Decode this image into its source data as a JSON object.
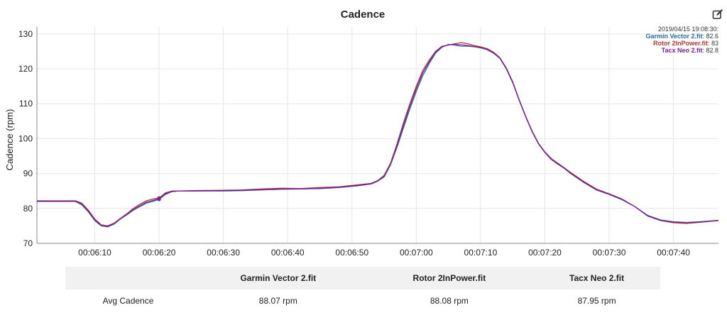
{
  "chart_data": {
    "type": "line",
    "title": "Cadence",
    "ylabel": "Cadence (rpm)",
    "xlabel": "",
    "ylim": [
      70,
      132
    ],
    "xlim": [
      361,
      467
    ],
    "yticks": [
      70,
      80,
      90,
      100,
      110,
      120,
      130
    ],
    "xticks": [
      {
        "t": 370,
        "label": "00:06:10"
      },
      {
        "t": 380,
        "label": "00:06:20"
      },
      {
        "t": 390,
        "label": "00:06:30"
      },
      {
        "t": 400,
        "label": "00:06:40"
      },
      {
        "t": 410,
        "label": "00:06:50"
      },
      {
        "t": 420,
        "label": "00:07:00"
      },
      {
        "t": 430,
        "label": "00:07:10"
      },
      {
        "t": 440,
        "label": "00:07:20"
      },
      {
        "t": 450,
        "label": "00:07:30"
      },
      {
        "t": 460,
        "label": "00:07:40"
      }
    ],
    "grid": true,
    "legend": {
      "position": "top-right",
      "timestamp": "2019/04/15 19:08:30:",
      "items": [
        {
          "name": "Garmin Vector 2.fit",
          "value": "82.6",
          "color": "#2a6d9e"
        },
        {
          "name": "Rotor 2InPower.fit",
          "value": "83",
          "color": "#b5382f"
        },
        {
          "name": "Tacx Neo 2.fit",
          "value": "82.8",
          "color": "#7b1fa2"
        }
      ]
    },
    "highlight_x": 380,
    "series": [
      {
        "name": "Garmin Vector 2.fit",
        "color": "#2a6d9e",
        "x": [
          361,
          367,
          368,
          369,
          370,
          371,
          372,
          373,
          374,
          375,
          376,
          377,
          378,
          379,
          380,
          381,
          382,
          383,
          385,
          390,
          393,
          396,
          399,
          402,
          405,
          408,
          411,
          413,
          414,
          415,
          416,
          417,
          418,
          419,
          420,
          421,
          422,
          423,
          424,
          425,
          426,
          427,
          428,
          429,
          430,
          431,
          432,
          433,
          434,
          435,
          436,
          437,
          438,
          439,
          440,
          441,
          442,
          443,
          444,
          446,
          448,
          450,
          452,
          454,
          456,
          458,
          460,
          462,
          464,
          467
        ],
        "y": [
          82,
          82,
          81,
          79,
          76.5,
          75,
          74.7,
          75.5,
          77,
          78.2,
          79.5,
          80.5,
          81.5,
          82,
          82.6,
          84,
          84.8,
          85,
          85,
          85,
          85.1,
          85.3,
          85.5,
          85.6,
          85.7,
          86,
          86.5,
          87,
          87.8,
          89,
          92.5,
          97.5,
          103,
          108.5,
          113.5,
          118,
          121.5,
          124.5,
          126.2,
          127,
          126.8,
          126.5,
          126.5,
          126.3,
          126,
          125.5,
          124.5,
          123,
          120,
          116,
          111,
          106.3,
          102,
          98.5,
          96,
          94,
          92.7,
          91.5,
          90,
          87.5,
          85.3,
          84,
          82.5,
          80.5,
          78,
          76.7,
          76.2,
          76,
          76.2,
          76.6
        ]
      },
      {
        "name": "Rotor 2InPower.fit",
        "color": "#b5382f",
        "x": [
          361,
          367,
          368,
          369,
          370,
          371,
          372,
          373,
          374,
          375,
          376,
          377,
          378,
          379,
          380,
          381,
          382,
          383,
          385,
          390,
          393,
          396,
          399,
          402,
          405,
          408,
          411,
          413,
          414,
          415,
          416,
          417,
          418,
          419,
          420,
          421,
          422,
          423,
          424,
          425,
          426,
          427,
          428,
          429,
          430,
          431,
          432,
          433,
          434,
          435,
          436,
          437,
          438,
          439,
          440,
          441,
          442,
          443,
          444,
          446,
          448,
          450,
          452,
          454,
          456,
          458,
          460,
          462,
          464,
          467
        ],
        "y": [
          82.2,
          82.2,
          81.5,
          79.5,
          77,
          75.3,
          75,
          75.8,
          77.2,
          78.5,
          80,
          81.2,
          82.2,
          82.7,
          83,
          84.5,
          85,
          85,
          85.1,
          85.2,
          85.3,
          85.6,
          85.8,
          85.7,
          86,
          86.2,
          86.8,
          87.2,
          88,
          89.5,
          93,
          98.5,
          104.5,
          110,
          115,
          119.5,
          122.5,
          125,
          126.5,
          126.8,
          127.2,
          127.5,
          127.2,
          126.7,
          126.3,
          125.8,
          124.8,
          123.2,
          120.3,
          116.3,
          111.2,
          106.5,
          102.2,
          98.7,
          96.2,
          94.3,
          93,
          91.7,
          90.3,
          87.8,
          85.6,
          84.2,
          82.7,
          80.5,
          77.8,
          76.5,
          75.9,
          75.7,
          76,
          76.5
        ]
      },
      {
        "name": "Tacx Neo 2.fit",
        "color": "#7b1fa2",
        "x": [
          361,
          367,
          368,
          369,
          370,
          371,
          372,
          373,
          374,
          375,
          376,
          377,
          378,
          379,
          380,
          381,
          382,
          383,
          385,
          390,
          393,
          396,
          399,
          402,
          405,
          408,
          411,
          413,
          414,
          415,
          416,
          417,
          418,
          419,
          420,
          421,
          422,
          423,
          424,
          425,
          426,
          427,
          428,
          429,
          430,
          431,
          432,
          433,
          434,
          435,
          436,
          437,
          438,
          439,
          440,
          441,
          442,
          443,
          444,
          446,
          448,
          450,
          452,
          454,
          456,
          458,
          460,
          462,
          464,
          467
        ],
        "y": [
          82.1,
          82.1,
          81.2,
          79.2,
          76.7,
          75.1,
          74.9,
          75.6,
          77.1,
          78.3,
          79.7,
          80.8,
          81.8,
          82.3,
          82.8,
          84.2,
          84.9,
          85,
          85,
          85.1,
          85.2,
          85.4,
          85.6,
          85.6,
          85.8,
          86.1,
          86.6,
          87.1,
          87.9,
          89.2,
          92.7,
          98,
          103.8,
          109.3,
          114.3,
          118.8,
          122,
          124.8,
          126.3,
          126.9,
          127,
          126.9,
          126.7,
          126.4,
          126.1,
          125.6,
          124.6,
          123.1,
          120.1,
          116.1,
          111.1,
          106.4,
          102.1,
          98.6,
          96.1,
          94.1,
          92.8,
          91.6,
          90.1,
          87.6,
          85.4,
          84.1,
          82.6,
          80.5,
          77.9,
          76.6,
          76.1,
          75.9,
          76.1,
          76.6
        ]
      }
    ]
  },
  "stats_table": {
    "headers": [
      "",
      "Garmin Vector 2.fit",
      "Rotor 2InPower.fit",
      "Tacx Neo 2.fit"
    ],
    "rows": [
      {
        "label": "Avg Cadence",
        "values": [
          "88.07 rpm",
          "88.08 rpm",
          "87.95 rpm"
        ]
      }
    ]
  },
  "icons": {
    "edit": "edit-icon"
  }
}
